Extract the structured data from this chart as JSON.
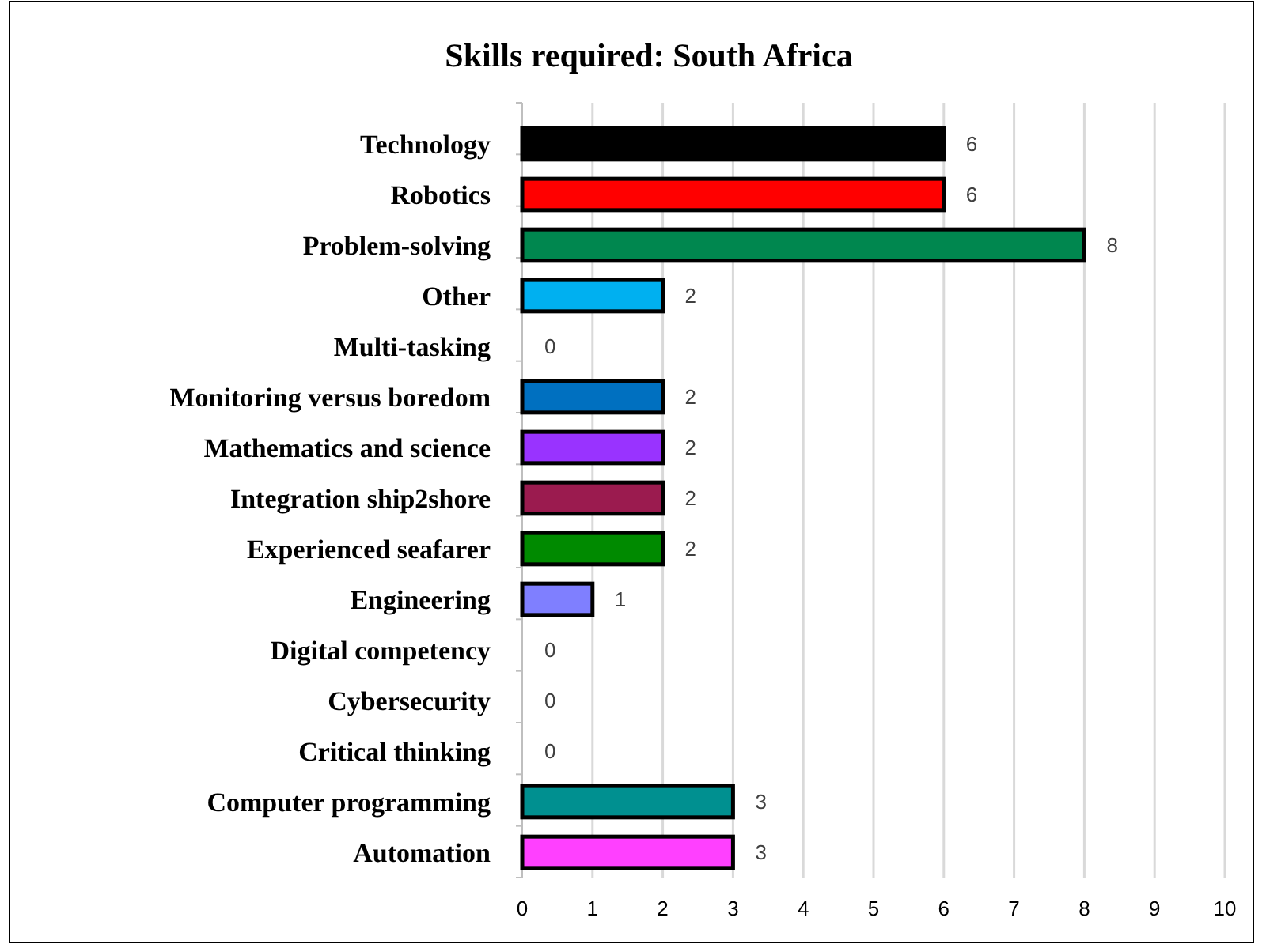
{
  "chart_data": {
    "type": "bar",
    "orientation": "horizontal",
    "title": "Skills required: South Africa",
    "categories": [
      "Technology",
      "Robotics",
      "Problem-solving",
      "Other",
      "Multi-tasking",
      "Monitoring versus boredom",
      "Mathematics and science",
      "Integration ship2shore",
      "Experienced seafarer",
      "Engineering",
      "Digital competency",
      "Cybersecurity",
      "Critical thinking",
      "Computer programming",
      "Automation"
    ],
    "values": [
      6,
      6,
      8,
      2,
      0,
      2,
      2,
      2,
      2,
      1,
      0,
      0,
      0,
      3,
      3
    ],
    "colors": [
      "#000000",
      "#ff0000",
      "#00874f",
      "#00b0f0",
      null,
      "#0070c0",
      "#9933ff",
      "#9b1b4f",
      "#008a00",
      "#7f7fff",
      null,
      null,
      null,
      "#009090",
      "#ff40ff"
    ],
    "xlim": [
      0,
      10
    ],
    "xticks": [
      0,
      1,
      2,
      3,
      4,
      5,
      6,
      7,
      8,
      9,
      10
    ],
    "grid": "x",
    "data_labels": true
  }
}
